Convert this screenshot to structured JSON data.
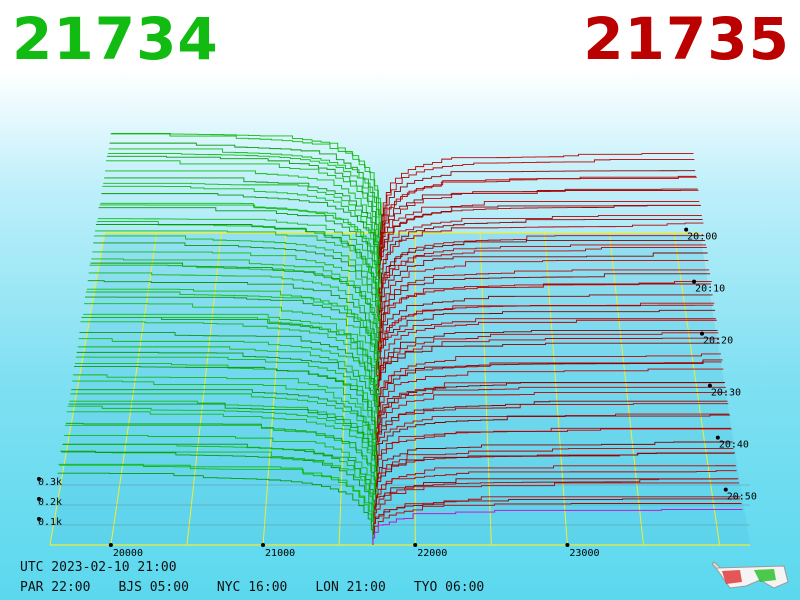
{
  "header": {
    "bid_price": "21734",
    "ask_price": "21735"
  },
  "footer": {
    "utc_label": "UTC 2023-02-10 21:00",
    "zones": [
      "PAR 22:00",
      "BJS 05:00",
      "NYC 16:00",
      "LON 21:00",
      "TYO 06:00"
    ]
  },
  "colors": {
    "bid": "#11bb11",
    "ask": "#bb0000",
    "grid": "#eeee33",
    "latest_ask": "#cc00cc"
  },
  "chart_data": {
    "type": "area",
    "description_type": "3d order book depth (cumulative volume vs price over time)",
    "x_ticks": [
      20000,
      21000,
      22000,
      23000
    ],
    "x_tick_labels": [
      "20000",
      "21000",
      "22000",
      "23000"
    ],
    "z_ticks": [
      0.1,
      0.2,
      0.3
    ],
    "z_tick_labels": [
      "0.1k",
      "0.2k",
      "0.3k"
    ],
    "time_ticks": [
      "20:00",
      "20:10",
      "20:20",
      "20:30",
      "20:40",
      "20:50"
    ],
    "mid_price": 21734.5,
    "x_range": [
      19600,
      24200
    ]
  }
}
